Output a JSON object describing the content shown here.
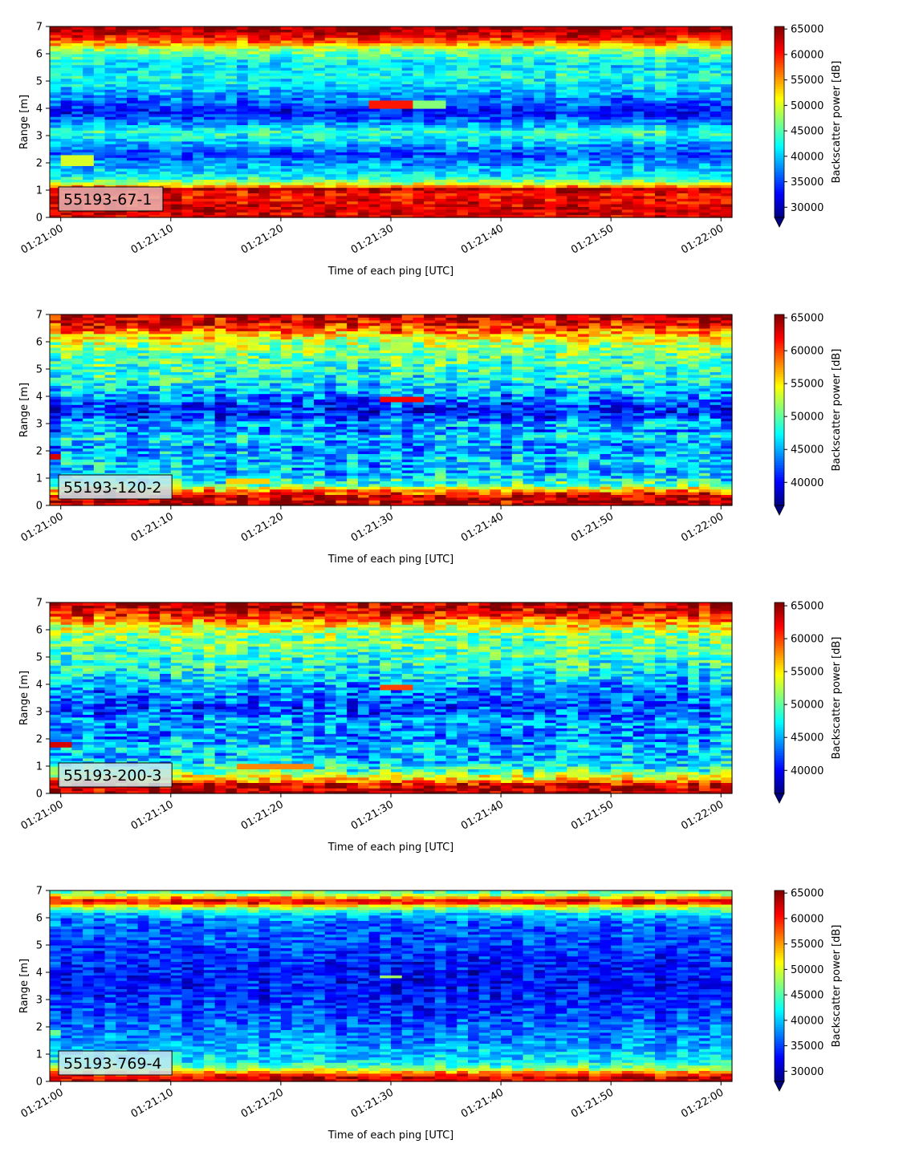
{
  "figure": {
    "colormap": "jet",
    "colormap_stops": [
      "#00007f",
      "#0000ff",
      "#007fff",
      "#00ffff",
      "#7fff7f",
      "#ffff00",
      "#ff7f00",
      "#ff0000",
      "#7f0000"
    ],
    "over_color": "#7f0000",
    "under_color": "#00007f"
  },
  "chart_data": [
    {
      "type": "heatmap",
      "label": "55193-67-1",
      "label_box_color": "#e7b3b3",
      "xlabel": "Time of each ping [UTC]",
      "ylabel": "Range [m]",
      "x_ticks": [
        "01:21:00",
        "01:21:10",
        "01:21:20",
        "01:21:30",
        "01:21:40",
        "01:21:50",
        "01:22:00"
      ],
      "x_range_seconds": [
        -1,
        61
      ],
      "y_ticks": [
        0,
        1,
        2,
        3,
        4,
        5,
        6,
        7
      ],
      "ylim": [
        0,
        7
      ],
      "colorbar": {
        "label": "Backscatter power [dB]",
        "vmin": 28000,
        "vmax": 65500,
        "extend": "min",
        "ticks": [
          30000,
          35000,
          40000,
          45000,
          50000,
          55000,
          60000,
          65000
        ]
      },
      "range_profile": [
        [
          0.15,
          62000
        ],
        [
          0.3,
          63000
        ],
        [
          0.6,
          61000
        ],
        [
          0.9,
          60000
        ],
        [
          1.05,
          64000
        ],
        [
          1.15,
          55000
        ],
        [
          1.3,
          48000
        ],
        [
          1.5,
          42000
        ],
        [
          1.8,
          40000
        ],
        [
          2.05,
          38000
        ],
        [
          2.3,
          35000
        ],
        [
          2.6,
          38000
        ],
        [
          2.9,
          42000
        ],
        [
          3.15,
          44000
        ],
        [
          3.35,
          40000
        ],
        [
          3.6,
          36000
        ],
        [
          3.9,
          33000
        ],
        [
          4.2,
          36000
        ],
        [
          4.5,
          38000
        ],
        [
          4.8,
          41000
        ],
        [
          5.2,
          43000
        ],
        [
          5.6,
          41000
        ],
        [
          5.95,
          45000
        ],
        [
          6.15,
          47000
        ],
        [
          6.35,
          54000
        ],
        [
          6.6,
          60000
        ],
        [
          6.85,
          64000
        ],
        [
          7.0,
          65000
        ]
      ],
      "features": [
        {
          "t": [
            0,
            3
          ],
          "r": [
            1.9,
            2.3
          ],
          "value": 50000
        },
        {
          "t": [
            28,
            32
          ],
          "r": [
            4.05,
            4.35
          ],
          "value": 60000
        },
        {
          "t": [
            32,
            35
          ],
          "r": [
            4.05,
            4.3
          ],
          "value": 47000
        }
      ],
      "noise_amplitude": 3500
    },
    {
      "type": "heatmap",
      "label": "55193-120-2",
      "label_box_color": "#c8e6ee",
      "xlabel": "Time of each ping [UTC]",
      "ylabel": "Range [m]",
      "x_ticks": [
        "01:21:00",
        "01:21:10",
        "01:21:20",
        "01:21:30",
        "01:21:40",
        "01:21:50",
        "01:22:00"
      ],
      "x_range_seconds": [
        -1,
        61
      ],
      "y_ticks": [
        0,
        1,
        2,
        3,
        4,
        5,
        6,
        7
      ],
      "ylim": [
        0,
        7
      ],
      "colorbar": {
        "label": "Backscatter power [dB]",
        "vmin": 36500,
        "vmax": 65500,
        "extend": "min",
        "ticks": [
          40000,
          45000,
          50000,
          55000,
          60000,
          65000
        ]
      },
      "range_profile": [
        [
          0.15,
          64000
        ],
        [
          0.35,
          63000
        ],
        [
          0.55,
          58000
        ],
        [
          0.75,
          50000
        ],
        [
          1.0,
          47000
        ],
        [
          1.3,
          45000
        ],
        [
          1.6,
          46000
        ],
        [
          1.9,
          45000
        ],
        [
          2.2,
          44000
        ],
        [
          2.5,
          47000
        ],
        [
          2.75,
          43000
        ],
        [
          3.0,
          46000
        ],
        [
          3.3,
          41000
        ],
        [
          3.6,
          41000
        ],
        [
          3.9,
          43000
        ],
        [
          4.3,
          46000
        ],
        [
          4.7,
          48000
        ],
        [
          5.1,
          49000
        ],
        [
          5.5,
          50000
        ],
        [
          5.9,
          52000
        ],
        [
          6.2,
          55000
        ],
        [
          6.5,
          60000
        ],
        [
          6.8,
          63000
        ],
        [
          7.0,
          64000
        ]
      ],
      "features": [
        {
          "t": [
            -1,
            0
          ],
          "r": [
            1.75,
            1.95
          ],
          "value": 63000
        },
        {
          "t": [
            15,
            19
          ],
          "r": [
            0.85,
            1.0
          ],
          "value": 56000
        },
        {
          "t": [
            29,
            33
          ],
          "r": [
            3.85,
            4.0
          ],
          "value": 62000
        }
      ],
      "noise_amplitude": 4000
    },
    {
      "type": "heatmap",
      "label": "55193-200-3",
      "label_box_color": "#c8e6ee",
      "xlabel": "Time of each ping [UTC]",
      "ylabel": "Range [m]",
      "x_ticks": [
        "01:21:00",
        "01:21:10",
        "01:21:20",
        "01:21:30",
        "01:21:40",
        "01:21:50",
        "01:22:00"
      ],
      "x_range_seconds": [
        -1,
        61
      ],
      "y_ticks": [
        0,
        1,
        2,
        3,
        4,
        5,
        6,
        7
      ],
      "ylim": [
        0,
        7
      ],
      "colorbar": {
        "label": "Backscatter power [dB]",
        "vmin": 36500,
        "vmax": 65500,
        "extend": "min",
        "ticks": [
          40000,
          45000,
          50000,
          55000,
          60000,
          65000
        ]
      },
      "range_profile": [
        [
          0.15,
          64000
        ],
        [
          0.35,
          62000
        ],
        [
          0.55,
          56000
        ],
        [
          0.8,
          50000
        ],
        [
          1.1,
          47000
        ],
        [
          1.4,
          45000
        ],
        [
          1.7,
          46000
        ],
        [
          2.0,
          44000
        ],
        [
          2.3,
          44000
        ],
        [
          2.6,
          45000
        ],
        [
          2.9,
          43000
        ],
        [
          3.2,
          42000
        ],
        [
          3.5,
          43000
        ],
        [
          3.8,
          44000
        ],
        [
          4.2,
          46000
        ],
        [
          4.6,
          48000
        ],
        [
          5.0,
          49000
        ],
        [
          5.4,
          50000
        ],
        [
          5.8,
          51000
        ],
        [
          6.1,
          54000
        ],
        [
          6.4,
          59000
        ],
        [
          6.7,
          63000
        ],
        [
          7.0,
          64000
        ]
      ],
      "features": [
        {
          "t": [
            -1,
            1
          ],
          "r": [
            1.75,
            1.95
          ],
          "value": 63000
        },
        {
          "t": [
            16,
            23
          ],
          "r": [
            0.9,
            1.05
          ],
          "value": 58000
        },
        {
          "t": [
            29,
            32
          ],
          "r": [
            3.8,
            3.95
          ],
          "value": 60000
        }
      ],
      "noise_amplitude": 4000
    },
    {
      "type": "heatmap",
      "label": "55193-769-4",
      "label_box_color": "#c8e6ee",
      "xlabel": "Time of each ping [UTC]",
      "ylabel": "Range [m]",
      "x_ticks": [
        "01:21:00",
        "01:21:10",
        "01:21:20",
        "01:21:30",
        "01:21:40",
        "01:21:50",
        "01:22:00"
      ],
      "x_range_seconds": [
        -1,
        61
      ],
      "y_ticks": [
        0,
        1,
        2,
        3,
        4,
        5,
        6,
        7
      ],
      "ylim": [
        0,
        7
      ],
      "colorbar": {
        "label": "Backscatter power [dB]",
        "vmin": 28000,
        "vmax": 65500,
        "extend": "min",
        "ticks": [
          30000,
          35000,
          40000,
          45000,
          50000,
          55000,
          60000,
          65000
        ]
      },
      "range_profile": [
        [
          0.15,
          62000
        ],
        [
          0.3,
          58000
        ],
        [
          0.5,
          46000
        ],
        [
          0.8,
          41000
        ],
        [
          1.1,
          40000
        ],
        [
          1.4,
          38000
        ],
        [
          1.8,
          37000
        ],
        [
          2.2,
          36000
        ],
        [
          2.6,
          35000
        ],
        [
          3.0,
          34000
        ],
        [
          3.5,
          33000
        ],
        [
          4.0,
          33000
        ],
        [
          4.5,
          34000
        ],
        [
          5.0,
          35000
        ],
        [
          5.5,
          36000
        ],
        [
          5.9,
          37000
        ],
        [
          6.2,
          41000
        ],
        [
          6.45,
          52000
        ],
        [
          6.6,
          63000
        ],
        [
          6.75,
          55000
        ],
        [
          6.9,
          46000
        ],
        [
          7.0,
          44000
        ]
      ],
      "features": [
        {
          "t": [
            -1,
            0
          ],
          "r": [
            1.7,
            1.85
          ],
          "value": 46000
        },
        {
          "t": [
            29,
            31
          ],
          "r": [
            3.82,
            3.92
          ],
          "value": 48000
        }
      ],
      "noise_amplitude": 3500
    }
  ]
}
